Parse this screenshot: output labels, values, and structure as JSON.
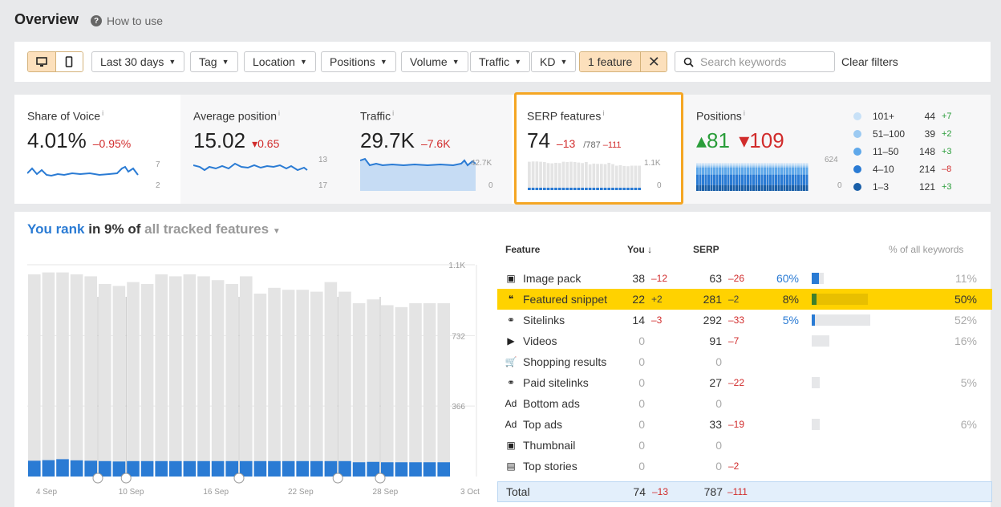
{
  "header": {
    "title": "Overview",
    "how_to_use": "How to use"
  },
  "filters": {
    "date": "Last 30 days",
    "tag": "Tag",
    "location": "Location",
    "positions": "Positions",
    "volume": "Volume",
    "traffic": "Traffic",
    "kd": "KD",
    "feature": "1 feature",
    "search_placeholder": "Search keywords",
    "clear": "Clear filters"
  },
  "metrics": {
    "share_of_voice": {
      "label": "Share of Voice",
      "value": "4.01%",
      "delta": "–0.95%",
      "scale_top": "7",
      "scale_bottom": "2"
    },
    "avg_position": {
      "label": "Average position",
      "value": "15.02",
      "delta": "▾0.65",
      "scale_top": "13",
      "scale_bottom": "17"
    },
    "traffic": {
      "label": "Traffic",
      "value": "29.7K",
      "delta": "–7.6K",
      "scale_top": "42.7K",
      "scale_bottom": "0"
    },
    "serp": {
      "label": "SERP features",
      "value": "74",
      "delta": "–13",
      "total": "/787",
      "total_delta": "–111",
      "scale_top": "1.1K",
      "scale_bottom": "0"
    },
    "positions": {
      "label": "Positions",
      "up": "▴81",
      "down": "▾109",
      "scale_top": "624",
      "scale_bottom": "0",
      "legend": [
        {
          "range": "101+",
          "count": "44",
          "delta": "+7",
          "color": "#c8e1f7"
        },
        {
          "range": "51–100",
          "count": "39",
          "delta": "+2",
          "color": "#9ccaf2"
        },
        {
          "range": "11–50",
          "count": "148",
          "delta": "+3",
          "color": "#5fa8ea"
        },
        {
          "range": "4–10",
          "count": "214",
          "delta": "–8",
          "color": "#2a7bd4"
        },
        {
          "range": "1–3",
          "count": "121",
          "delta": "+3",
          "color": "#1a5fa8"
        }
      ]
    }
  },
  "rank": {
    "you_rank": "You rank",
    "in": "in 9% of",
    "scope": "all tracked features"
  },
  "chart_data": {
    "type": "bar",
    "categories": [
      "4 Sep",
      "",
      "",
      "",
      "",
      "10 Sep",
      "",
      "",
      "",
      "",
      "",
      "16 Sep",
      "",
      "",
      "",
      "",
      "",
      "22 Sep",
      "",
      "",
      "",
      "",
      "",
      "28 Sep",
      "",
      "",
      "",
      "",
      "3 Oct",
      ""
    ],
    "series": [
      {
        "values": [
          1050,
          1060,
          1060,
          1050,
          1040,
          1000,
          990,
          1010,
          1000,
          1050,
          1040,
          1050,
          1040,
          1020,
          1000,
          1040,
          950,
          980,
          970,
          970,
          960,
          1010,
          960,
          900,
          920,
          890,
          880,
          900,
          900,
          900
        ]
      },
      {
        "values": [
          82,
          85,
          90,
          84,
          82,
          80,
          78,
          80,
          80,
          80,
          80,
          80,
          80,
          80,
          80,
          80,
          80,
          80,
          80,
          80,
          80,
          80,
          80,
          74,
          76,
          74,
          74,
          74,
          74,
          74
        ]
      }
    ],
    "ylim": [
      0,
      1100
    ],
    "yticks": [
      "1.1K",
      "732",
      "366"
    ],
    "xticks": [
      "4 Sep",
      "10 Sep",
      "16 Sep",
      "22 Sep",
      "28 Sep",
      "3 Oct"
    ]
  },
  "table": {
    "headers": {
      "feature": "Feature",
      "you": "You ↓",
      "serp": "SERP",
      "pct": "% of all keywords"
    },
    "rows": [
      {
        "icon": "image-pack-icon",
        "glyph": "▣",
        "name": "Image pack",
        "you": "38",
        "you_d": "–12",
        "serp": "63",
        "serp_d": "–26",
        "share": "60%",
        "share_frac": 0.6,
        "pct": "11%",
        "pct_frac": 0.11
      },
      {
        "icon": "featured-snippet-icon",
        "glyph": "❝",
        "name": "Featured snippet",
        "you": "22",
        "you_d": "+2",
        "serp": "281",
        "serp_d": "–2",
        "share": "8%",
        "share_frac": 0.08,
        "pct": "50%",
        "pct_frac": 0.5,
        "hl": true
      },
      {
        "icon": "sitelinks-icon",
        "glyph": "⚭",
        "name": "Sitelinks",
        "you": "14",
        "you_d": "–3",
        "serp": "292",
        "serp_d": "–33",
        "share": "5%",
        "share_frac": 0.05,
        "pct": "52%",
        "pct_frac": 0.52
      },
      {
        "icon": "videos-icon",
        "glyph": "▶",
        "name": "Videos",
        "you": "0",
        "you_d": "",
        "serp": "91",
        "serp_d": "–7",
        "share": "",
        "share_frac": 0,
        "pct": "16%",
        "pct_frac": 0.16
      },
      {
        "icon": "shopping-cart-icon",
        "glyph": "🛒",
        "name": "Shopping results",
        "you": "0",
        "you_d": "",
        "serp": "0",
        "serp_d": "",
        "share": "",
        "share_frac": 0,
        "pct": "",
        "pct_frac": 0
      },
      {
        "icon": "paid-sitelinks-icon",
        "glyph": "⚭",
        "name": "Paid sitelinks",
        "you": "0",
        "you_d": "",
        "serp": "27",
        "serp_d": "–22",
        "share": "",
        "share_frac": 0,
        "pct": "5%",
        "pct_frac": 0.05
      },
      {
        "icon": "bottom-ads-icon",
        "glyph": "Ad",
        "name": "Bottom ads",
        "you": "0",
        "you_d": "",
        "serp": "0",
        "serp_d": "",
        "share": "",
        "share_frac": 0,
        "pct": "",
        "pct_frac": 0
      },
      {
        "icon": "top-ads-icon",
        "glyph": "Ad",
        "name": "Top ads",
        "you": "0",
        "you_d": "",
        "serp": "33",
        "serp_d": "–19",
        "share": "",
        "share_frac": 0,
        "pct": "6%",
        "pct_frac": 0.06
      },
      {
        "icon": "thumbnail-icon",
        "glyph": "▣",
        "name": "Thumbnail",
        "you": "0",
        "you_d": "",
        "serp": "0",
        "serp_d": "",
        "share": "",
        "share_frac": 0,
        "pct": "",
        "pct_frac": 0
      },
      {
        "icon": "top-stories-icon",
        "glyph": "▤",
        "name": "Top stories",
        "you": "0",
        "you_d": "",
        "serp": "0",
        "serp_d": "–2",
        "share": "",
        "share_frac": 0,
        "pct": "",
        "pct_frac": 0
      }
    ],
    "total": {
      "label": "Total",
      "you": "74",
      "you_d": "–13",
      "serp": "787",
      "serp_d": "–111"
    }
  }
}
